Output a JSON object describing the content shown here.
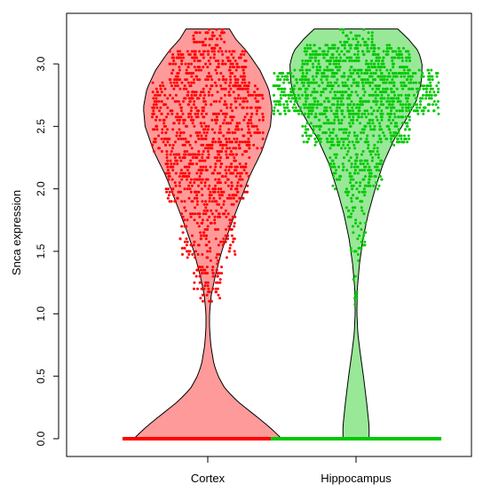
{
  "chart_data": {
    "type": "violin",
    "ylabel": "Snca expression",
    "ylim": [
      -0.08,
      3.38
    ],
    "yticks": [
      "0.0",
      "0.5",
      "1.0",
      "1.5",
      "2.0",
      "2.5",
      "3.0"
    ],
    "categories": [
      "Cortex",
      "Hippocampus"
    ],
    "series": [
      {
        "name": "Cortex",
        "violin_color": "#ff9a9a",
        "point_color": "#ff0000",
        "max_value": 3.28,
        "density_profile": [
          [
            0.0,
            0.85
          ],
          [
            0.1,
            0.7
          ],
          [
            0.2,
            0.52
          ],
          [
            0.3,
            0.34
          ],
          [
            0.4,
            0.2
          ],
          [
            0.5,
            0.12
          ],
          [
            0.6,
            0.07
          ],
          [
            0.75,
            0.035
          ],
          [
            0.9,
            0.02
          ],
          [
            1.0,
            0.02
          ],
          [
            1.15,
            0.04
          ],
          [
            1.3,
            0.085
          ],
          [
            1.5,
            0.16
          ],
          [
            1.7,
            0.26
          ],
          [
            1.9,
            0.37
          ],
          [
            2.1,
            0.48
          ],
          [
            2.3,
            0.62
          ],
          [
            2.5,
            0.72
          ],
          [
            2.65,
            0.74
          ],
          [
            2.8,
            0.7
          ],
          [
            2.95,
            0.6
          ],
          [
            3.1,
            0.45
          ],
          [
            3.2,
            0.32
          ],
          [
            3.28,
            0.25
          ]
        ],
        "point_bands": [
          {
            "from": 0.0,
            "to": 0.0,
            "count": 1,
            "spread": 0.98
          },
          {
            "from": 1.1,
            "to": 1.45,
            "count": 70,
            "spread": 0.16
          },
          {
            "from": 1.45,
            "to": 1.9,
            "count": 150,
            "spread": 0.32
          },
          {
            "from": 1.9,
            "to": 2.3,
            "count": 320,
            "spread": 0.48
          },
          {
            "from": 2.3,
            "to": 2.85,
            "count": 520,
            "spread": 0.64
          },
          {
            "from": 2.85,
            "to": 3.1,
            "count": 190,
            "spread": 0.44
          },
          {
            "from": 3.1,
            "to": 3.27,
            "count": 50,
            "spread": 0.2
          }
        ]
      },
      {
        "name": "Hippocampus",
        "violin_color": "#98e898",
        "point_color": "#00c800",
        "max_value": 3.28,
        "density_profile": [
          [
            0.0,
            0.15
          ],
          [
            0.1,
            0.15
          ],
          [
            0.3,
            0.12
          ],
          [
            0.5,
            0.085
          ],
          [
            0.7,
            0.045
          ],
          [
            0.85,
            0.02
          ],
          [
            1.0,
            0.01
          ],
          [
            1.2,
            0.015
          ],
          [
            1.4,
            0.04
          ],
          [
            1.6,
            0.08
          ],
          [
            1.8,
            0.14
          ],
          [
            2.0,
            0.22
          ],
          [
            2.2,
            0.31
          ],
          [
            2.4,
            0.44
          ],
          [
            2.55,
            0.57
          ],
          [
            2.7,
            0.69
          ],
          [
            2.85,
            0.75
          ],
          [
            3.0,
            0.76
          ],
          [
            3.1,
            0.72
          ],
          [
            3.2,
            0.6
          ],
          [
            3.28,
            0.48
          ]
        ],
        "point_bands": [
          {
            "from": 0.0,
            "to": 0.0,
            "count": 1,
            "spread": 0.98
          },
          {
            "from": 0.9,
            "to": 1.5,
            "count": 12,
            "spread": 0.03
          },
          {
            "from": 1.5,
            "to": 2.0,
            "count": 60,
            "spread": 0.12
          },
          {
            "from": 2.0,
            "to": 2.35,
            "count": 150,
            "spread": 0.3
          },
          {
            "from": 2.35,
            "to": 2.6,
            "count": 260,
            "spread": 0.62
          },
          {
            "from": 2.6,
            "to": 2.95,
            "count": 700,
            "spread": 0.95
          },
          {
            "from": 2.95,
            "to": 3.15,
            "count": 260,
            "spread": 0.62
          },
          {
            "from": 3.15,
            "to": 3.28,
            "count": 40,
            "spread": 0.2
          }
        ]
      }
    ]
  }
}
